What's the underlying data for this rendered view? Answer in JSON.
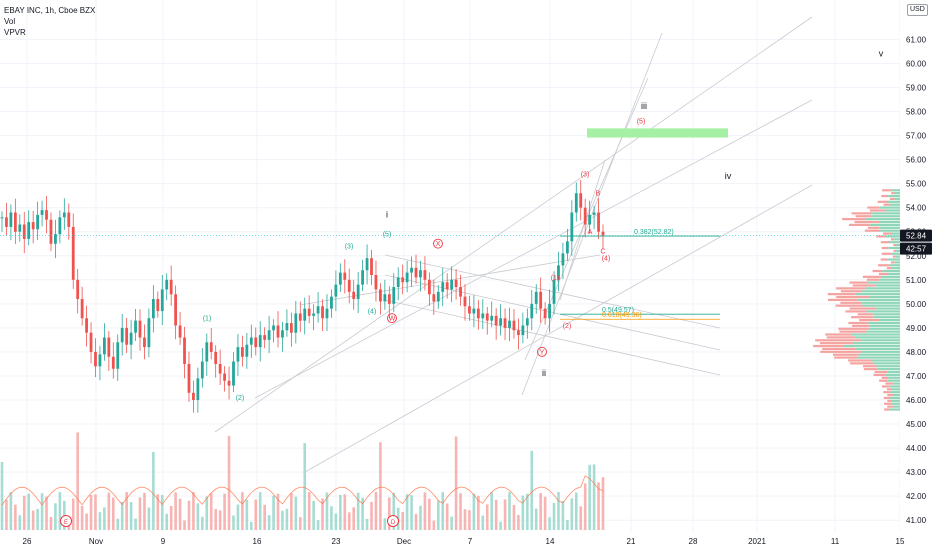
{
  "legend": {
    "title": "EBAY INC, 1h, Cboe BZX",
    "line2": "Vol",
    "line3": "VPVR"
  },
  "currency": "USD",
  "colors": {
    "up": "#26a69a",
    "down": "#ef5350",
    "wave_green": "#22ab94",
    "wave_red": "#f23645",
    "target_box": "#a6f0a6",
    "fib_green": "#22ab94",
    "fib_orange": "#ff9800",
    "last_price": "#131722",
    "channel": "#c8cacf"
  },
  "chart_data": {
    "type": "candlestick",
    "symbol": "EBAY INC",
    "interval": "1h",
    "exchange": "Cboe BZX",
    "ylim": [
      40.8,
      61.6
    ],
    "y_ticks": [
      41.0,
      42.0,
      43.0,
      44.0,
      45.0,
      46.0,
      47.0,
      48.0,
      49.0,
      50.0,
      51.0,
      52.0,
      53.0,
      54.0,
      55.0,
      56.0,
      57.0,
      58.0,
      59.0,
      60.0,
      61.0
    ],
    "x_ticks": [
      "26",
      "Nov",
      "9",
      "16",
      "23",
      "Dec",
      "7",
      "14",
      "21",
      "28",
      "2021",
      "11",
      "15"
    ],
    "price_path": [
      [
        "26",
        53.6
      ],
      [
        "26",
        53.2
      ],
      [
        "26",
        53.8
      ],
      [
        "26",
        53.0
      ],
      [
        "26",
        53.3
      ],
      [
        "26",
        52.7
      ],
      [
        "26",
        53.4
      ],
      [
        "26",
        53.1
      ],
      [
        "26",
        53.7
      ],
      [
        "26",
        53.9
      ],
      [
        "26",
        53.5
      ],
      [
        "26",
        52.5
      ],
      [
        "26",
        52.9
      ],
      [
        "26",
        53.6
      ],
      [
        "26",
        53.8
      ],
      [
        "26",
        53.2
      ],
      [
        "Nov",
        51.0
      ],
      [
        "Nov",
        50.2
      ],
      [
        "Nov",
        49.4
      ],
      [
        "Nov",
        48.8
      ],
      [
        "Nov",
        48.0
      ],
      [
        "Nov",
        47.4
      ],
      [
        "Nov",
        47.9
      ],
      [
        "Nov",
        48.6
      ],
      [
        "Nov",
        47.8
      ],
      [
        "Nov",
        47.3
      ],
      [
        "Nov",
        48.4
      ],
      [
        "Nov",
        49.0
      ],
      [
        "Nov",
        48.3
      ],
      [
        "Nov",
        48.8
      ],
      [
        "Nov",
        49.3
      ],
      [
        "Nov",
        48.6
      ],
      [
        "Nov",
        48.2
      ],
      [
        "Nov",
        49.4
      ],
      [
        "Nov",
        50.2
      ],
      [
        "Nov",
        49.7
      ],
      [
        "Nov",
        50.6
      ],
      [
        "9",
        51.0
      ],
      [
        "9",
        50.4
      ],
      [
        "9",
        49.1
      ],
      [
        "9",
        48.6
      ],
      [
        "9",
        47.5
      ],
      [
        "9",
        46.3
      ],
      [
        "9",
        46.0
      ],
      [
        "9",
        46.9
      ],
      [
        "9",
        47.6
      ],
      [
        "9",
        48.4
      ],
      [
        "9",
        48.0
      ],
      [
        "9",
        47.5
      ],
      [
        "9",
        47.1
      ],
      [
        "9",
        46.8
      ],
      [
        "9",
        46.6
      ],
      [
        "9",
        47.6
      ],
      [
        "9",
        48.2
      ],
      [
        "9",
        47.8
      ],
      [
        "16",
        48.3
      ],
      [
        "16",
        48.6
      ],
      [
        "16",
        48.2
      ],
      [
        "16",
        48.7
      ],
      [
        "16",
        48.5
      ],
      [
        "16",
        48.9
      ],
      [
        "16",
        49.1
      ],
      [
        "16",
        48.6
      ],
      [
        "16",
        48.9
      ],
      [
        "16",
        49.2
      ],
      [
        "16",
        48.8
      ],
      [
        "16",
        49.6
      ],
      [
        "16",
        49.3
      ],
      [
        "16",
        49.8
      ],
      [
        "16",
        49.5
      ],
      [
        "23",
        49.6
      ],
      [
        "23",
        49.9
      ],
      [
        "23",
        49.4
      ],
      [
        "23",
        49.8
      ],
      [
        "23",
        50.3
      ],
      [
        "23",
        50.8
      ],
      [
        "23",
        51.3
      ],
      [
        "23",
        51.0
      ],
      [
        "23",
        50.5
      ],
      [
        "23",
        50.2
      ],
      [
        "23",
        50.8
      ],
      [
        "23",
        51.4
      ],
      [
        "23",
        51.9
      ],
      [
        "23",
        51.2
      ],
      [
        "23",
        50.6
      ],
      [
        "23",
        50.1
      ],
      [
        "Dec",
        50.4
      ],
      [
        "Dec",
        50.0
      ],
      [
        "Dec",
        50.7
      ],
      [
        "Dec",
        51.1
      ],
      [
        "Dec",
        50.9
      ],
      [
        "Dec",
        51.3
      ],
      [
        "Dec",
        51.5
      ],
      [
        "Dec",
        51.1
      ],
      [
        "Dec",
        51.4
      ],
      [
        "Dec",
        51.0
      ],
      [
        "Dec",
        50.4
      ],
      [
        "Dec",
        50.1
      ],
      [
        "7",
        50.5
      ],
      [
        "7",
        50.9
      ],
      [
        "7",
        50.6
      ],
      [
        "7",
        51.0
      ],
      [
        "7",
        50.7
      ],
      [
        "7",
        50.3
      ],
      [
        "7",
        49.9
      ],
      [
        "7",
        49.6
      ],
      [
        "7",
        49.8
      ],
      [
        "7",
        49.4
      ],
      [
        "7",
        49.6
      ],
      [
        "7",
        49.3
      ],
      [
        "7",
        49.5
      ],
      [
        "7",
        49.1
      ],
      [
        "7",
        49.4
      ],
      [
        "7",
        49.0
      ],
      [
        "7",
        49.3
      ],
      [
        "14",
        48.9
      ],
      [
        "14",
        48.7
      ],
      [
        "14",
        49.1
      ],
      [
        "14",
        49.4
      ],
      [
        "14",
        50.0
      ],
      [
        "14",
        50.5
      ],
      [
        "14",
        49.8
      ],
      [
        "14",
        49.4
      ],
      [
        "14",
        50.0
      ],
      [
        "14",
        51.0
      ],
      [
        "14",
        51.6
      ],
      [
        "14",
        52.1
      ],
      [
        "14",
        52.6
      ],
      [
        "14",
        53.8
      ],
      [
        "14",
        54.6
      ],
      [
        "14",
        54.0
      ],
      [
        "14",
        53.3
      ],
      [
        "14",
        53.7
      ],
      [
        "14",
        53.8
      ],
      [
        "14",
        53.0
      ],
      [
        "14",
        52.84
      ]
    ],
    "last_price": 52.84,
    "last_price_label": "52.84",
    "countdown_label": "42:57",
    "fib_levels": [
      {
        "label": "0.382(52.82)",
        "value": 52.82
      },
      {
        "label": "0.5(49.57)",
        "value": 49.57
      },
      {
        "label": "0.618(49.36)",
        "value": 49.36
      }
    ],
    "target_zone": {
      "from": 57.0,
      "to": 57.3,
      "x_from": "14",
      "x_to": "28"
    },
    "wave_labels": [
      {
        "text": "(1)",
        "x": "9",
        "y": 49.3,
        "color": "green"
      },
      {
        "text": "(2)",
        "x": "9",
        "y": 46.0,
        "color": "green"
      },
      {
        "text": "(3)",
        "x": "23",
        "y": 52.3,
        "color": "green"
      },
      {
        "text": "(4)",
        "x": "23",
        "y": 49.6,
        "color": "green"
      },
      {
        "text": "(5)",
        "x": "23",
        "y": 52.8,
        "color": "green"
      },
      {
        "text": "i",
        "x": "23",
        "y": 53.6,
        "color": "dark"
      },
      {
        "text": "W",
        "x": "23",
        "y": 49.3,
        "color": "red",
        "circled": true
      },
      {
        "text": "X",
        "x": "Dec",
        "y": 52.4,
        "color": "red",
        "circled": true
      },
      {
        "text": "Y",
        "x": "14",
        "y": 47.9,
        "color": "red",
        "circled": true
      },
      {
        "text": "ii",
        "x": "14",
        "y": 47.0,
        "color": "dark"
      },
      {
        "text": "(1)",
        "x": "14",
        "y": 51.0,
        "color": "red"
      },
      {
        "text": "(2)",
        "x": "14",
        "y": 49.0,
        "color": "red"
      },
      {
        "text": "(3)",
        "x": "14",
        "y": 55.3,
        "color": "red"
      },
      {
        "text": "(4)",
        "x": "14",
        "y": 51.8,
        "color": "red"
      },
      {
        "text": "(5)",
        "x": "14",
        "y": 57.5,
        "color": "red"
      },
      {
        "text": "A",
        "x": "14",
        "y": 52.9,
        "color": "red"
      },
      {
        "text": "B",
        "x": "14",
        "y": 54.5,
        "color": "red"
      },
      {
        "text": "C",
        "x": "14",
        "y": 52.1,
        "color": "red"
      },
      {
        "text": "iii",
        "x": "21",
        "y": 58.1,
        "color": "dark"
      },
      {
        "text": "iv",
        "x": "28",
        "y": 55.2,
        "color": "dark"
      },
      {
        "text": "v",
        "x": "11",
        "y": 60.3,
        "color": "dark"
      }
    ],
    "event_markers": [
      {
        "text": "E",
        "x": "26"
      },
      {
        "text": "D",
        "x": "23"
      }
    ]
  }
}
